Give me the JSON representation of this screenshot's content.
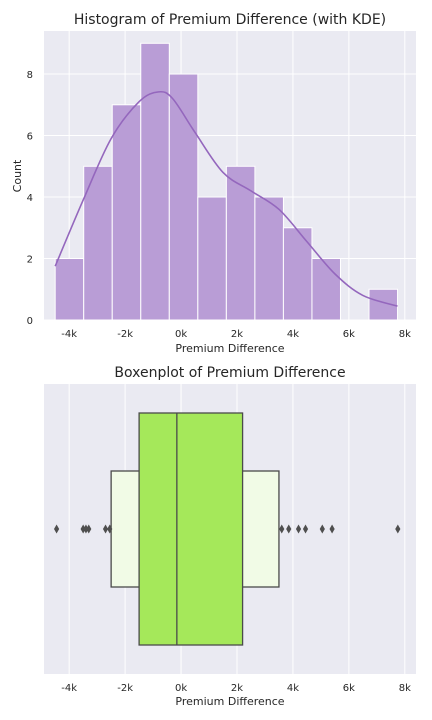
{
  "chart_data": [
    {
      "type": "histogram",
      "title": "Histogram of Premium Difference (with KDE)",
      "xlabel": "Premium Difference",
      "ylabel": "Count",
      "xlim": [
        -4900,
        8400
      ],
      "ylim": [
        0,
        9.4
      ],
      "x_ticks": [
        -4000,
        -2000,
        0,
        2000,
        4000,
        6000,
        8000
      ],
      "x_tick_labels": [
        "-4k",
        "-2k",
        "0k",
        "2k",
        "4k",
        "6k",
        "8k"
      ],
      "y_ticks": [
        0,
        2,
        4,
        6,
        8
      ],
      "y_tick_labels": [
        "0",
        "2",
        "4",
        "6",
        "8"
      ],
      "bin_edges": [
        -4500,
        -3480,
        -2460,
        -1440,
        -420,
        600,
        1620,
        2640,
        3660,
        4680,
        5700,
        6720,
        7740
      ],
      "counts": [
        2,
        5,
        7,
        9,
        8,
        4,
        5,
        4,
        3,
        2,
        0,
        1
      ],
      "kde": {
        "x": [
          -4500,
          -3500,
          -2500,
          -1500,
          -800,
          -300,
          500,
          1500,
          2500,
          3500,
          4500,
          5500,
          6500,
          7740
        ],
        "y": [
          1.75,
          3.9,
          5.9,
          7.1,
          7.42,
          7.2,
          6.1,
          4.8,
          4.2,
          3.6,
          2.55,
          1.5,
          0.8,
          0.45
        ]
      },
      "bar_color": "#b99dd6",
      "kde_color": "#9467bd",
      "grid": true
    },
    {
      "type": "boxenplot",
      "title": "Boxenplot of Premium Difference",
      "xlabel": "Premium Difference",
      "xlim": [
        -4900,
        8400
      ],
      "x_ticks": [
        -4000,
        -2000,
        0,
        2000,
        4000,
        6000,
        8000
      ],
      "x_tick_labels": [
        "-4k",
        "-2k",
        "0k",
        "2k",
        "4k",
        "6k",
        "8k"
      ],
      "median": -150,
      "boxes": [
        {
          "lower": -1500,
          "upper": 2200,
          "color": "#a5e85a",
          "level": 1
        },
        {
          "lower": -2500,
          "upper": 3500,
          "color": "#f1fbe6",
          "level": 2
        }
      ],
      "outliers": [
        -4450,
        -3500,
        -3400,
        -3300,
        -2700,
        -2550,
        3600,
        3850,
        4200,
        4450,
        5050,
        5400,
        7750
      ],
      "grid": true
    }
  ],
  "style": {
    "axes_bg": "#eaeaf2",
    "grid_color": "#ffffff",
    "edge_color": "#4a4a4a",
    "text_color": "#262626"
  }
}
